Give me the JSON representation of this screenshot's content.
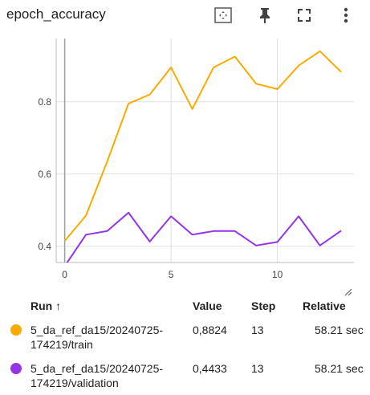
{
  "panel": {
    "title": "epoch_accuracy"
  },
  "toolbar": {
    "icons": [
      "fit-domain-icon",
      "pin-icon",
      "fullscreen-icon",
      "more-vert-icon"
    ]
  },
  "colors": {
    "train": "#f9ab00",
    "validation": "#9334e6"
  },
  "chart_data": {
    "type": "line",
    "x": [
      0,
      1,
      2,
      3,
      4,
      5,
      6,
      7,
      8,
      9,
      10,
      11,
      12,
      13
    ],
    "series": [
      {
        "name": "5_da_ref_da15/20240725-174219/train",
        "values": [
          0.415,
          0.485,
          0.635,
          0.795,
          0.82,
          0.895,
          0.78,
          0.895,
          0.925,
          0.85,
          0.835,
          0.9,
          0.94,
          0.8824
        ]
      },
      {
        "name": "5_da_ref_da15/20240725-174219/validation",
        "values": [
          0.345,
          0.432,
          0.442,
          0.493,
          0.413,
          0.483,
          0.432,
          0.442,
          0.442,
          0.402,
          0.412,
          0.483,
          0.402,
          0.4433
        ]
      }
    ],
    "xticks": [
      "0",
      "5",
      "10"
    ],
    "yticks": [
      "0.4",
      "0.6",
      "0.8"
    ],
    "xlim": [
      -0.4,
      13.6
    ],
    "ylim": [
      0.355,
      0.975
    ],
    "grid": true
  },
  "table": {
    "headers": {
      "run": "Run ↑",
      "value": "Value",
      "step": "Step",
      "relative": "Relative"
    },
    "rows": [
      {
        "run_line1": "5_da_ref_da15/20240725-",
        "run_line2": "174219/train",
        "value": "0,8824",
        "step": "13",
        "relative": "58.21 sec"
      },
      {
        "run_line1": "5_da_ref_da15/20240725-",
        "run_line2": "174219/validation",
        "value": "0,4433",
        "step": "13",
        "relative": "58.21 sec"
      }
    ]
  }
}
